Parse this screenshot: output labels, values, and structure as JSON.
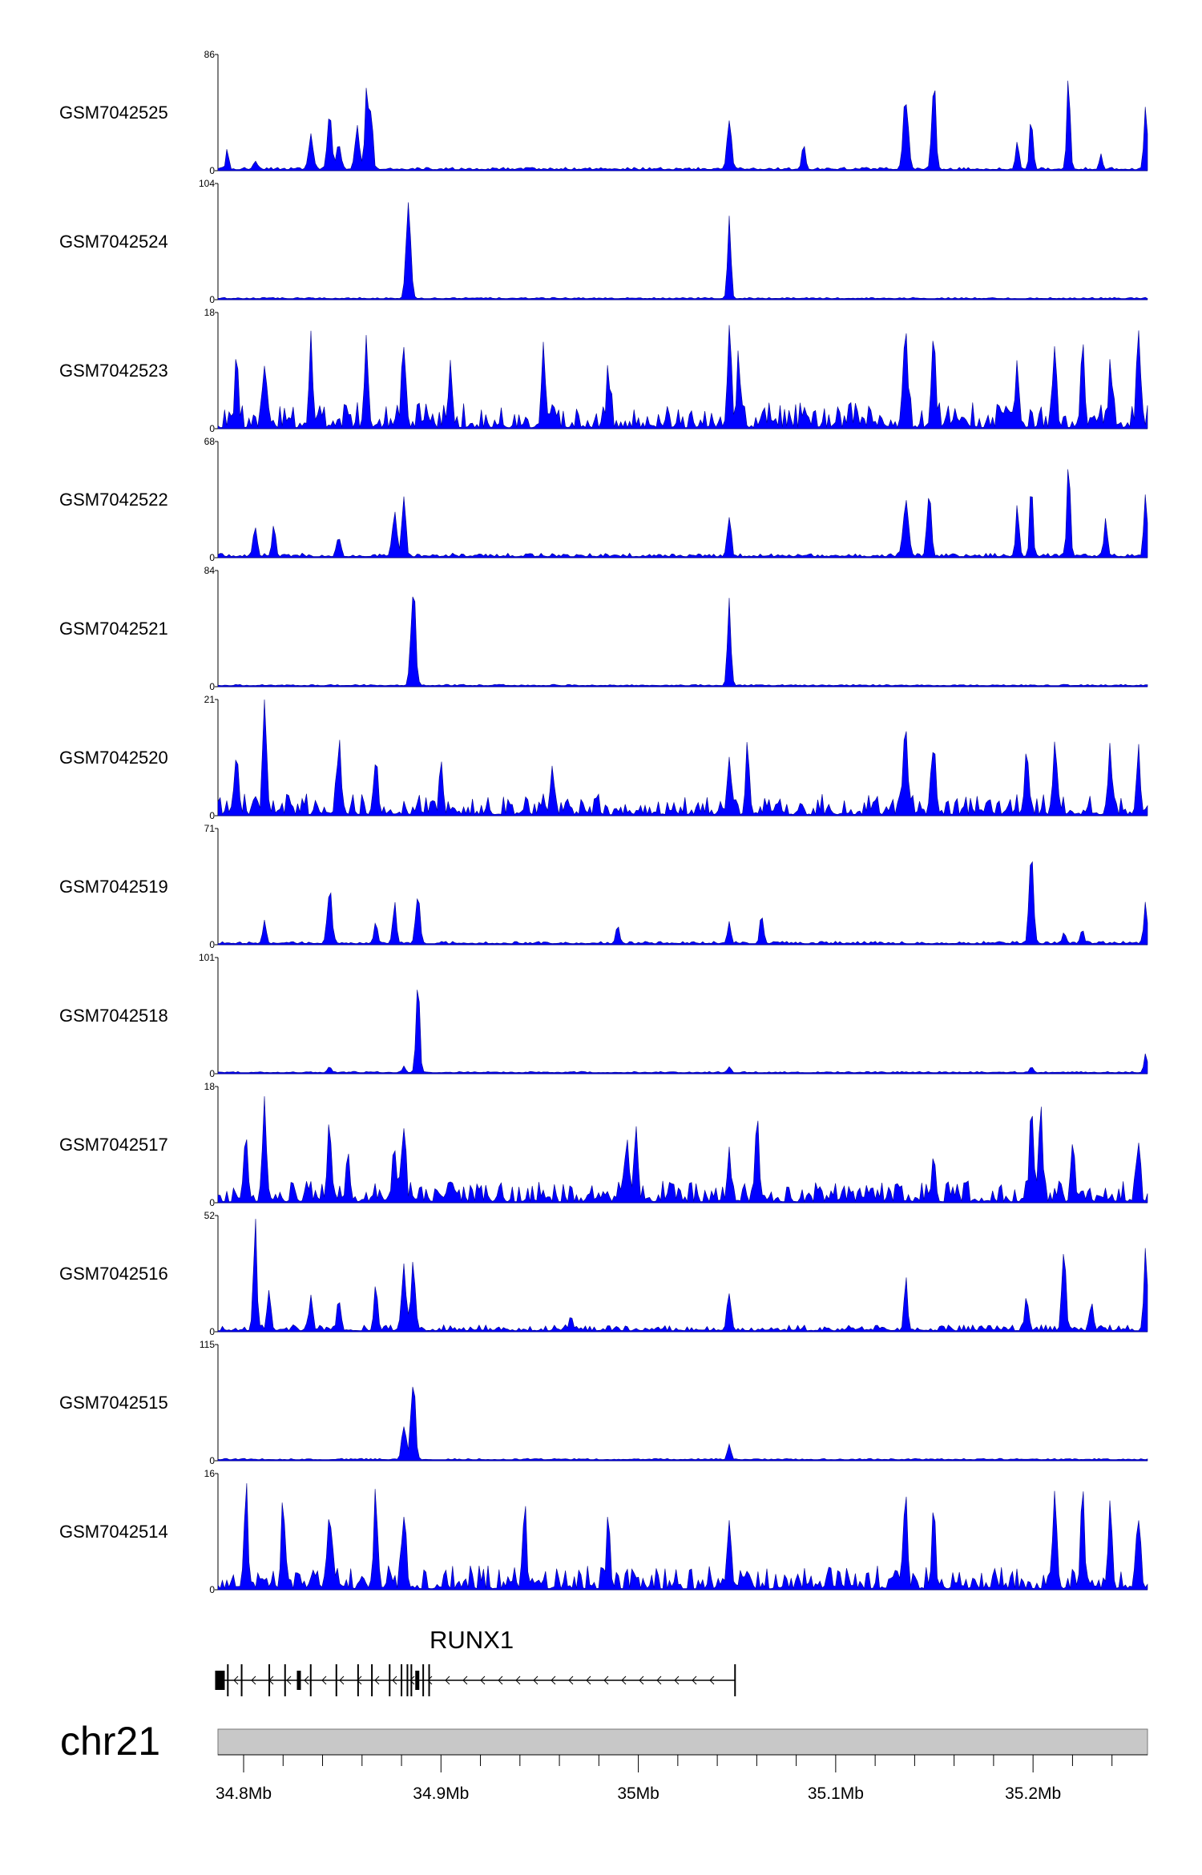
{
  "chart_data": {
    "type": "area",
    "genome_range_mb": [
      34.787,
      35.258
    ],
    "tracks": [
      {
        "name": "GSM7042525",
        "ymax": 86,
        "ymin": 0
      },
      {
        "name": "GSM7042524",
        "ymax": 104,
        "ymin": 0
      },
      {
        "name": "GSM7042523",
        "ymax": 18,
        "ymin": 0
      },
      {
        "name": "GSM7042522",
        "ymax": 68,
        "ymin": 0
      },
      {
        "name": "GSM7042521",
        "ymax": 84,
        "ymin": 0
      },
      {
        "name": "GSM7042520",
        "ymax": 21,
        "ymin": 0
      },
      {
        "name": "GSM7042519",
        "ymax": 71,
        "ymin": 0
      },
      {
        "name": "GSM7042518",
        "ymax": 101,
        "ymin": 0
      },
      {
        "name": "GSM7042517",
        "ymax": 18,
        "ymin": 0
      },
      {
        "name": "GSM7042516",
        "ymax": 52,
        "ymin": 0
      },
      {
        "name": "GSM7042515",
        "ymax": 115,
        "ymin": 0
      },
      {
        "name": "GSM7042514",
        "ymax": 16,
        "ymin": 0
      }
    ],
    "gene": {
      "name": "RUNX1",
      "start_mb": 34.787,
      "end_mb": 35.049,
      "strand": "-",
      "exons_mb": [
        34.788,
        34.792,
        34.799,
        34.813,
        34.821,
        34.828,
        34.834,
        34.847,
        34.858,
        34.865,
        34.874,
        34.88,
        34.883,
        34.885,
        34.888,
        34.891,
        34.894,
        35.049
      ]
    },
    "chromosome": "chr21",
    "axis": {
      "ticks": [
        {
          "pos": 34.8,
          "label": "34.8Mb"
        },
        {
          "pos": 34.9,
          "label": "34.9Mb"
        },
        {
          "pos": 35.0,
          "label": "35Mb"
        },
        {
          "pos": 35.1,
          "label": "35.1Mb"
        },
        {
          "pos": 35.2,
          "label": "35.2Mb"
        }
      ],
      "minor_step_mb": 0.02
    },
    "colors": {
      "signal": "#0000ff",
      "signal_edge": "#00008b",
      "ideogram": "#c8c8c8",
      "gene": "#000000"
    }
  }
}
